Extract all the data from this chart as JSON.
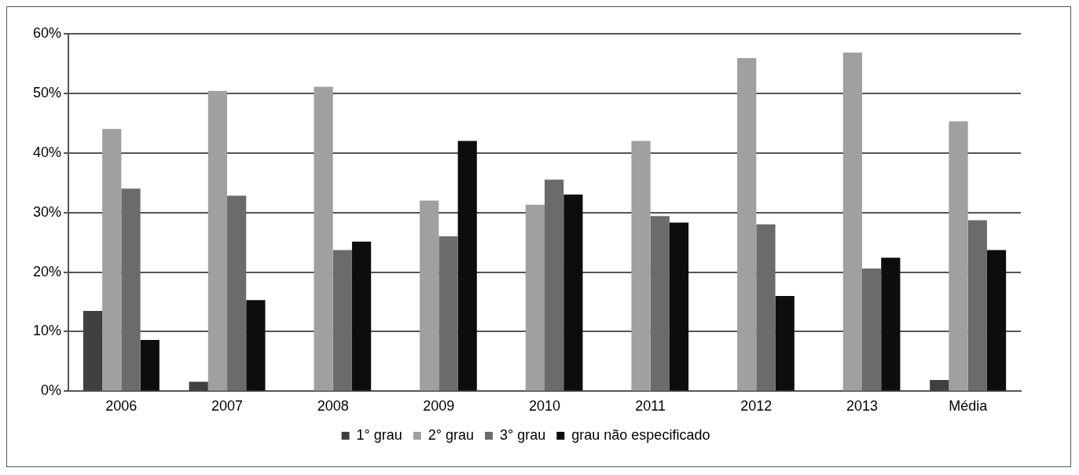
{
  "chart_data": {
    "type": "bar",
    "categories": [
      "2006",
      "2007",
      "2008",
      "2009",
      "2010",
      "2011",
      "2012",
      "2013",
      "Média"
    ],
    "series": [
      {
        "name": "1° grau",
        "color": "#404040",
        "values": [
          13.5,
          1.6,
          0,
          0,
          0,
          0,
          0,
          0,
          1.9
        ]
      },
      {
        "name": "2° grau",
        "color": "#a0a0a0",
        "values": [
          44,
          50.4,
          51.1,
          32,
          31.3,
          42,
          55.9,
          56.8,
          45.3
        ]
      },
      {
        "name": "3° grau",
        "color": "#6b6b6b",
        "values": [
          34,
          32.8,
          23.7,
          26,
          35.5,
          29.4,
          28,
          20.6,
          28.7
        ]
      },
      {
        "name": "grau não especificado",
        "color": "#0d0d0d",
        "values": [
          8.6,
          15.3,
          25.1,
          42,
          33,
          28.3,
          16,
          22.4,
          23.7
        ]
      }
    ],
    "ylim": [
      0,
      60
    ],
    "yticks": [
      {
        "value": 0,
        "label": "0%"
      },
      {
        "value": 10,
        "label": "10%"
      },
      {
        "value": 20,
        "label": "20%"
      },
      {
        "value": 30,
        "label": "30%"
      },
      {
        "value": 40,
        "label": "40%"
      },
      {
        "value": 50,
        "label": "50%"
      },
      {
        "value": 60,
        "label": "60%"
      }
    ],
    "grid": "y",
    "legend": "bottom"
  }
}
